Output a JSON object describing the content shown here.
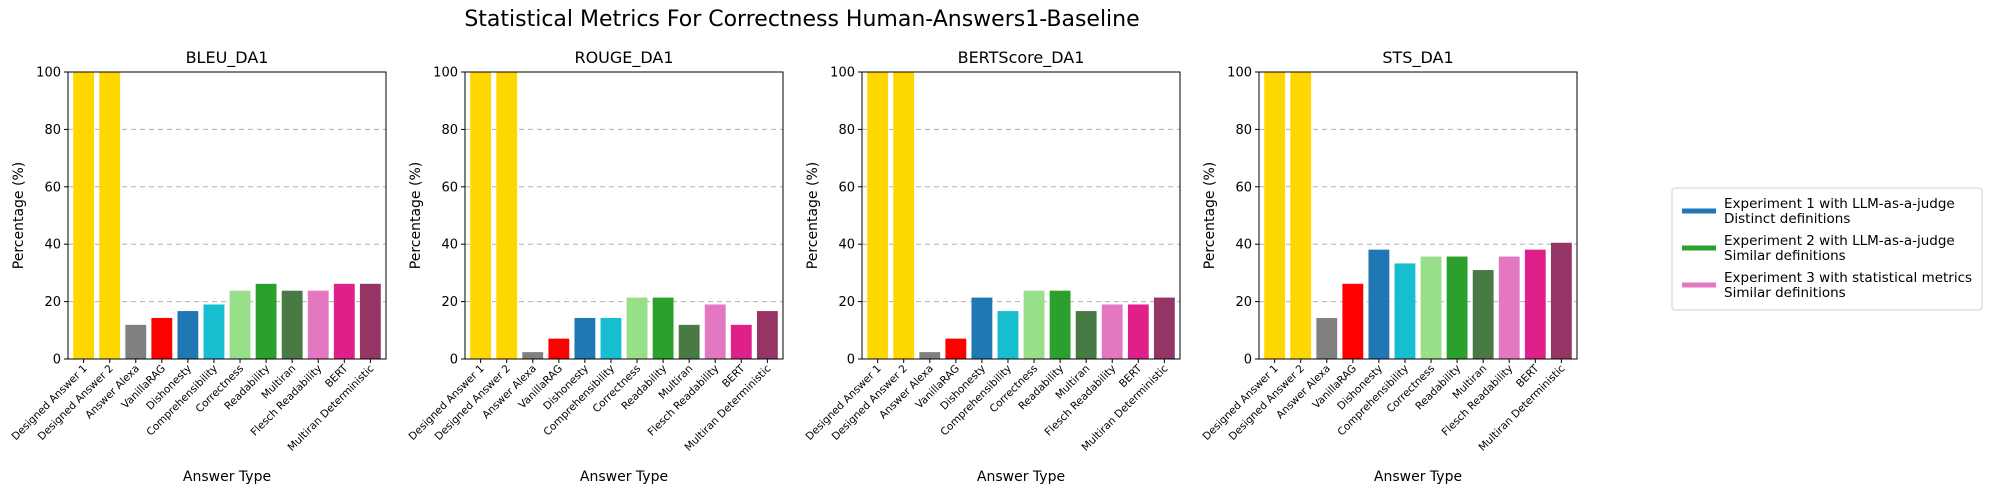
{
  "figure": {
    "title": "Statistical Metrics For Correctness Human-Answers1-Baseline"
  },
  "legend": {
    "entries": [
      {
        "line1": "Experiment 1 with LLM-as-a-judge",
        "line2": "Distinct definitions",
        "color": "#1f77b4"
      },
      {
        "line1": "Experiment 2 with LLM-as-a-judge",
        "line2": "Similar definitions",
        "color": "#2ca02c"
      },
      {
        "line1": "Experiment 3 with statistical metrics",
        "line2": "Similar definitions",
        "color": "#e377c2"
      }
    ]
  },
  "chart_data": [
    {
      "type": "bar",
      "title": "BLEU_DA1",
      "xlabel": "Answer Type",
      "ylabel": "Percentage (%)",
      "ylim": [
        0,
        100
      ],
      "yticks": [
        0,
        20,
        40,
        60,
        80,
        100
      ],
      "grid": "y-dashed",
      "categories": [
        "Designed Answer 1",
        "Designed Answer 2",
        "Answer Alexa",
        "VanillaRAG",
        "Dishonesty",
        "Comprehensibility",
        "Correctness",
        "Readability",
        "Multiran",
        "Flesch Readability",
        "BERT",
        "Multiran Deterministic"
      ],
      "values": [
        100,
        100,
        11.9,
        14.3,
        16.7,
        19.0,
        23.8,
        26.2,
        23.8,
        23.8,
        26.2,
        26.2
      ],
      "colors": [
        "#ffd700",
        "#ffd700",
        "#808080",
        "#ff0000",
        "#1f77b4",
        "#17becf",
        "#98df8a",
        "#2ca02c",
        "#4a7a44",
        "#e377c2",
        "#e0208a",
        "#943566"
      ]
    },
    {
      "type": "bar",
      "title": "ROUGE_DA1",
      "xlabel": "Answer Type",
      "ylabel": "Percentage (%)",
      "ylim": [
        0,
        100
      ],
      "yticks": [
        0,
        20,
        40,
        60,
        80,
        100
      ],
      "grid": "y-dashed",
      "categories": [
        "Designed Answer 1",
        "Designed Answer 2",
        "Answer Alexa",
        "VanillaRAG",
        "Dishonesty",
        "Comprehensibility",
        "Correctness",
        "Readability",
        "Multiran",
        "Flesch Readability",
        "BERT",
        "Multiran Deterministic"
      ],
      "values": [
        100,
        100,
        2.4,
        7.1,
        14.3,
        14.3,
        21.4,
        21.4,
        11.9,
        19.0,
        11.9,
        16.7
      ],
      "colors": [
        "#ffd700",
        "#ffd700",
        "#808080",
        "#ff0000",
        "#1f77b4",
        "#17becf",
        "#98df8a",
        "#2ca02c",
        "#4a7a44",
        "#e377c2",
        "#e0208a",
        "#943566"
      ]
    },
    {
      "type": "bar",
      "title": "BERTScore_DA1",
      "xlabel": "Answer Type",
      "ylabel": "Percentage (%)",
      "ylim": [
        0,
        100
      ],
      "yticks": [
        0,
        20,
        40,
        60,
        80,
        100
      ],
      "grid": "y-dashed",
      "categories": [
        "Designed Answer 1",
        "Designed Answer 2",
        "Answer Alexa",
        "VanillaRAG",
        "Dishonesty",
        "Comprehensibility",
        "Correctness",
        "Readability",
        "Multiran",
        "Flesch Readability",
        "BERT",
        "Multiran Deterministic"
      ],
      "values": [
        100,
        100,
        2.4,
        7.1,
        21.4,
        16.7,
        23.8,
        23.8,
        16.7,
        19.0,
        19.0,
        21.4
      ],
      "colors": [
        "#ffd700",
        "#ffd700",
        "#808080",
        "#ff0000",
        "#1f77b4",
        "#17becf",
        "#98df8a",
        "#2ca02c",
        "#4a7a44",
        "#e377c2",
        "#e0208a",
        "#943566"
      ]
    },
    {
      "type": "bar",
      "title": "STS_DA1",
      "xlabel": "Answer Type",
      "ylabel": "Percentage (%)",
      "ylim": [
        0,
        100
      ],
      "yticks": [
        0,
        20,
        40,
        60,
        80,
        100
      ],
      "grid": "y-dashed",
      "categories": [
        "Designed Answer 1",
        "Designed Answer 2",
        "Answer Alexa",
        "VanillaRAG",
        "Dishonesty",
        "Comprehensibility",
        "Correctness",
        "Readability",
        "Multiran",
        "Flesch Readability",
        "BERT",
        "Multiran Deterministic"
      ],
      "values": [
        100,
        100,
        14.3,
        26.2,
        38.1,
        33.3,
        35.7,
        35.7,
        31.0,
        35.7,
        38.1,
        40.5
      ],
      "colors": [
        "#ffd700",
        "#ffd700",
        "#808080",
        "#ff0000",
        "#1f77b4",
        "#17becf",
        "#98df8a",
        "#2ca02c",
        "#4a7a44",
        "#e377c2",
        "#e0208a",
        "#943566"
      ]
    }
  ]
}
